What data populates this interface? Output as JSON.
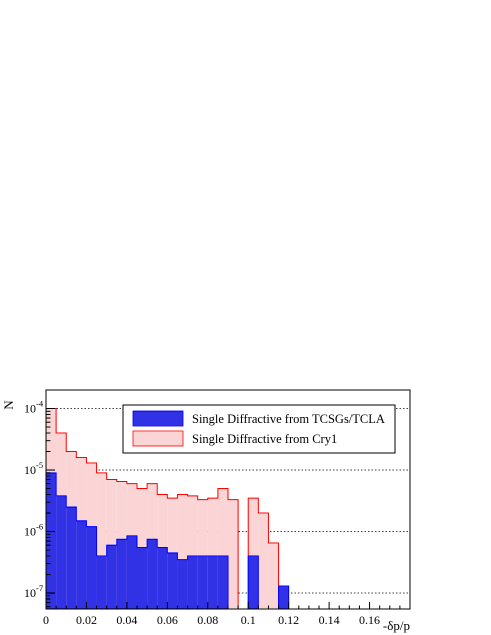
{
  "chart_data": {
    "type": "bar",
    "title": "",
    "xlabel": "-δp/p",
    "ylabel": "N",
    "xlim": [
      0,
      0.18
    ],
    "ylim": [
      5.5e-08,
      0.0002
    ],
    "yscale": "log",
    "grid": "horizontal dotted",
    "legend_position": "top-right",
    "bin_width": 0.005,
    "x_ticks": [
      {
        "value": 0,
        "label": "0"
      },
      {
        "value": 0.02,
        "label": "0.02"
      },
      {
        "value": 0.04,
        "label": "0.04"
      },
      {
        "value": 0.06,
        "label": "0.06"
      },
      {
        "value": 0.08,
        "label": "0.08"
      },
      {
        "value": 0.1,
        "label": "0.1"
      },
      {
        "value": 0.12,
        "label": "0.12"
      },
      {
        "value": 0.14,
        "label": "0.14"
      },
      {
        "value": 0.16,
        "label": "0.16"
      }
    ],
    "y_ticks": [
      {
        "value": 0.0001,
        "base": "10",
        "exp": "-4"
      },
      {
        "value": 1e-05,
        "base": "10",
        "exp": "-5"
      },
      {
        "value": 1e-06,
        "base": "10",
        "exp": "-6"
      },
      {
        "value": 1e-07,
        "base": "10",
        "exp": "-7"
      }
    ],
    "series": [
      {
        "name": "Single Diffractive from Cry1",
        "color": "#ff0000",
        "values": [
          0.0001,
          4e-05,
          2e-05,
          1.6e-05,
          1.3e-05,
          9e-06,
          7e-06,
          6.5e-06,
          6e-06,
          5e-06,
          6e-06,
          4e-06,
          3.5e-06,
          4e-06,
          3.8e-06,
          3.3e-06,
          3.5e-06,
          5e-06,
          3.3e-06,
          0,
          3.5e-06,
          2e-06,
          6.5e-07,
          0,
          0
        ]
      },
      {
        "name": "Single Diffractive from TCSGs/TCLA",
        "color": "#0000ff",
        "values": [
          9e-06,
          3.8e-06,
          2.5e-06,
          1.5e-06,
          1.2e-06,
          4e-07,
          6e-07,
          7.5e-07,
          8.5e-07,
          5.5e-07,
          7.5e-07,
          5.5e-07,
          4.5e-07,
          3.5e-07,
          4e-07,
          4e-07,
          4e-07,
          4e-07,
          0,
          0,
          4e-07,
          0,
          0,
          1.3e-07,
          0
        ]
      }
    ]
  }
}
